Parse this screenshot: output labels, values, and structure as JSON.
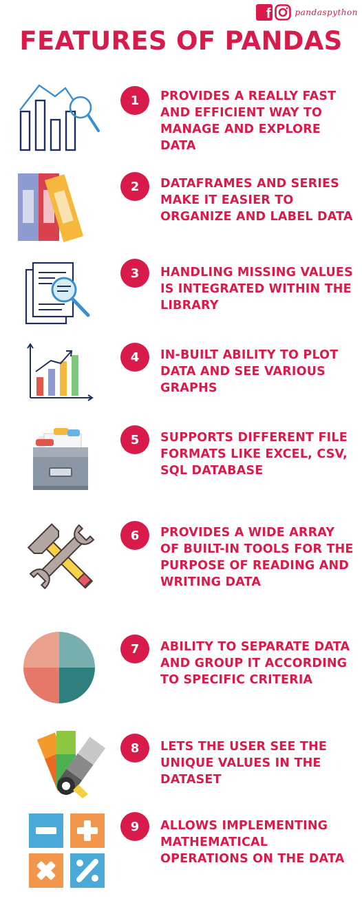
{
  "header": {
    "handle": "pandaspython",
    "title": "FEATURES OF PANDAS"
  },
  "features": [
    {
      "number": "1",
      "text": "PROVIDES A REALLY FAST AND EFFICIENT WAY TO MANAGE AND EXPLORE DATA",
      "icon": "bar-chart-magnifier-icon"
    },
    {
      "number": "2",
      "text": "DATAFRAMES AND SERIES MAKE IT EASIER TO ORGANIZE AND LABEL DATA",
      "icon": "binders-icon"
    },
    {
      "number": "3",
      "text": "HANDLING MISSING VALUES IS INTEGRATED WITHIN THE LIBRARY",
      "icon": "document-search-icon"
    },
    {
      "number": "4",
      "text": "IN-BUILT ABILITY TO PLOT DATA AND SEE VARIOUS GRAPHS",
      "icon": "growth-graph-icon"
    },
    {
      "number": "5",
      "text": "SUPPORTS DIFFERENT FILE FORMATS LIKE EXCEL, CSV, SQL DATABASE",
      "icon": "file-drawer-icon"
    },
    {
      "number": "6",
      "text": "PROVIDES A WIDE ARRAY OF BUILT-IN TOOLS FOR THE PURPOSE OF READING AND WRITING DATA",
      "icon": "hammer-wrench-icon"
    },
    {
      "number": "7",
      "text": "ABILITY TO SEPARATE DATA AND GROUP IT ACCORDING TO SPECIFIC CRITERIA",
      "icon": "pie-chart-icon"
    },
    {
      "number": "8",
      "text": "LETS THE USER SEE THE UNIQUE VALUES IN THE DATASET",
      "icon": "color-swatch-icon"
    },
    {
      "number": "9",
      "text": "ALLOWS IMPLEMENTING MATHEMATICAL OPERATIONS ON THE DATA",
      "icon": "math-operators-icon"
    }
  ],
  "colors": {
    "accent": "#d81b4a",
    "pie": [
      "#e9a08c",
      "#79aeae",
      "#e57868",
      "#2f7f7e"
    ],
    "swatch": [
      "#f39a2b",
      "#e96a22",
      "#8dc63f",
      "#4caf50",
      "#b0b0b0",
      "#6d6d6d",
      "#f4d03f"
    ]
  }
}
